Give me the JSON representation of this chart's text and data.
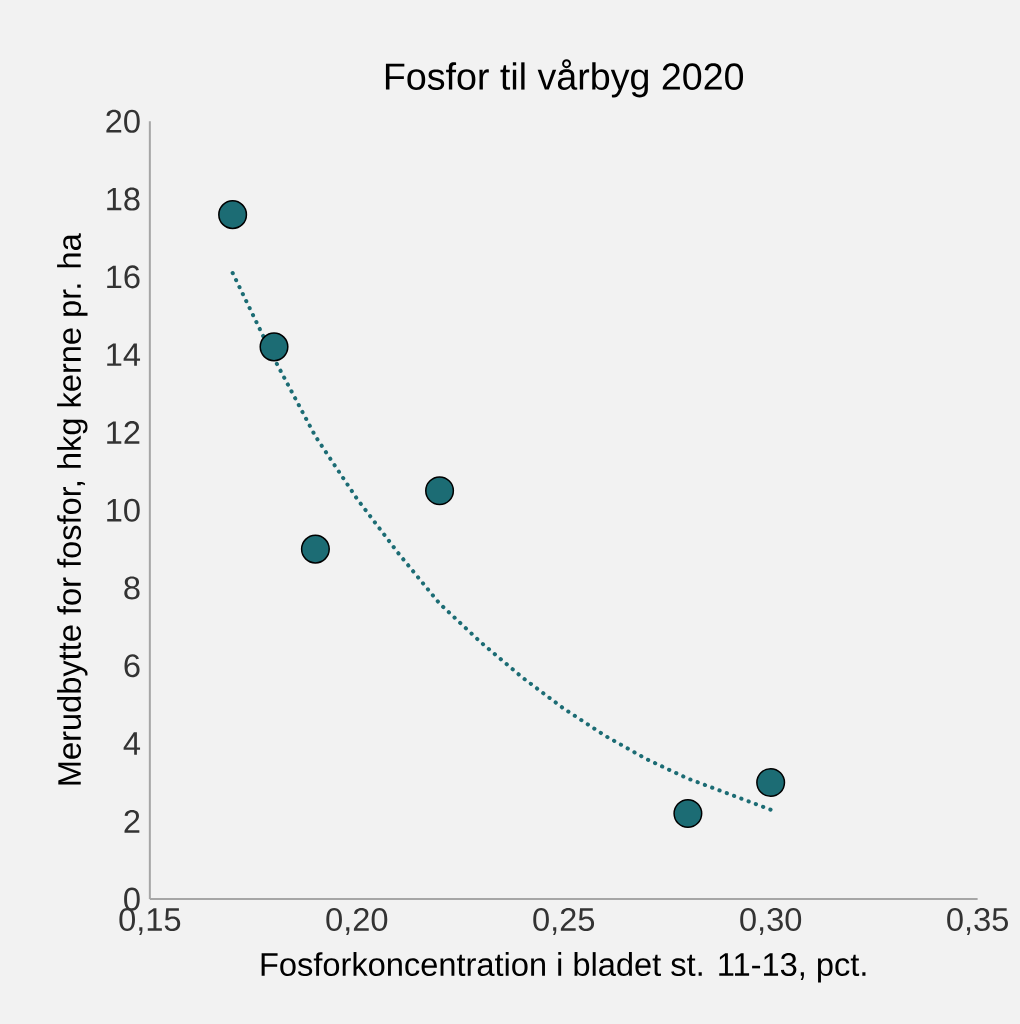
{
  "chart_data": {
    "type": "scatter",
    "title": "Fosfor til vårbyg 2020",
    "xlabel": "Fosforkoncentration i bladet st. 11-13, pct.",
    "ylabel": "Merudbytte for fosfor, hkg kerne pr. ha",
    "series": [
      {
        "color": "#1c6c74",
        "marker": "circle",
        "x": [
          0.17,
          0.18,
          0.19,
          0.22,
          0.28,
          0.3
        ],
        "values": [
          17.6,
          14.2,
          9.0,
          10.5,
          2.2,
          3.0
        ]
      },
      {
        "type": "line",
        "color": "#1c6c74",
        "line_style": "dotted",
        "marker": "none",
        "x": [
          0.17,
          0.18,
          0.19,
          0.2,
          0.21,
          0.22,
          0.23,
          0.24,
          0.25,
          0.26,
          0.27,
          0.28,
          0.29,
          0.3
        ],
        "values": [
          16.1,
          13.9,
          11.9,
          10.3,
          8.9,
          7.6,
          6.6,
          5.7,
          4.9,
          4.2,
          3.6,
          3.1,
          2.7,
          2.3
        ]
      }
    ],
    "xlim": [
      0.15,
      0.35
    ],
    "ylim": [
      0,
      20
    ],
    "xticks": [
      {
        "value": 0.15,
        "label": "0,15"
      },
      {
        "value": 0.2,
        "label": "0,20"
      },
      {
        "value": 0.25,
        "label": "0,25"
      },
      {
        "value": 0.3,
        "label": "0,30"
      },
      {
        "value": 0.35,
        "label": "0,35"
      }
    ],
    "yticks": [
      0,
      2,
      4,
      6,
      8,
      10,
      12,
      14,
      16,
      18,
      20
    ],
    "grid": false
  }
}
